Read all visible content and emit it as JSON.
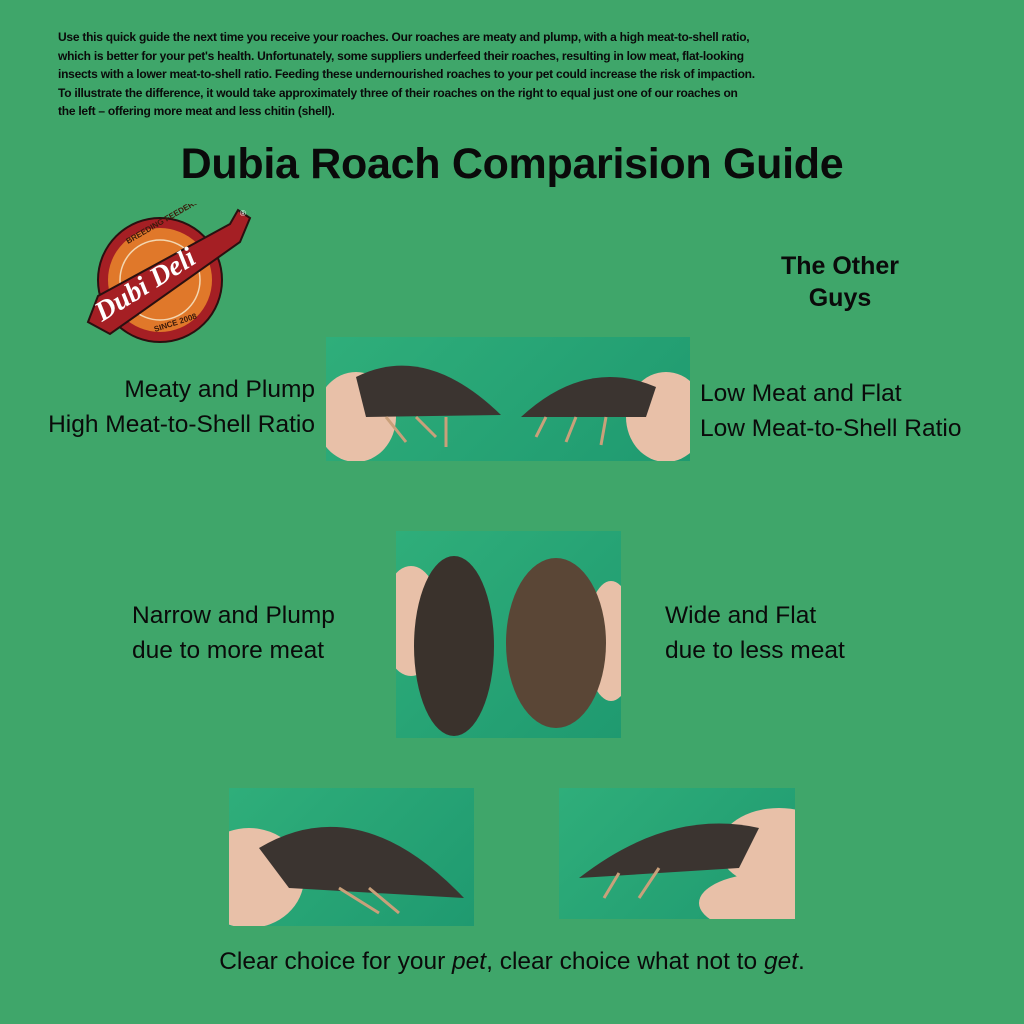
{
  "intro": {
    "lines": [
      "Use this quick guide the next time you receive your roaches. Our roaches are meaty and plump, with a high meat-to-shell ratio,",
      "which is better for your pet's health. Unfortunately, some suppliers underfeed their roaches, resulting in low meat, flat-looking",
      "insects with a lower meat-to-shell ratio. Feeding these undernourished roaches to your pet could increase the risk of impaction.",
      "To illustrate the difference, it would take approximately three of their roaches on the right to equal just one of our roaches on",
      "the left – offering more meat and less chitin (shell)."
    ]
  },
  "title": "Dubia Roach Comparision Guide",
  "logo": {
    "brand": "Dubi Deli",
    "top_text": "BREEDING FEEDERS",
    "bottom_text": "SINCE 2008",
    "registered": "®"
  },
  "other_guys": {
    "line1": "The Other",
    "line2": "Guys"
  },
  "side_view": {
    "left": {
      "line1": "Meaty and Plump",
      "line2": "High Meat-to-Shell Ratio"
    },
    "right": {
      "line1": "Low Meat and Flat",
      "line2": "Low Meat-to-Shell Ratio"
    }
  },
  "top_view": {
    "left": {
      "line1": "Narrow and Plump",
      "line2": "due to more meat"
    },
    "right": {
      "line1": "Wide and Flat",
      "line2": "due to less meat"
    }
  },
  "caption": {
    "part1": "Clear choice for your ",
    "em1": "pet",
    "part2": ", clear choice what not to ",
    "em2": "get",
    "part3": "."
  },
  "colors": {
    "background": "#3fa66a",
    "logo_red": "#a51f24",
    "logo_orange": "#e0782a"
  }
}
